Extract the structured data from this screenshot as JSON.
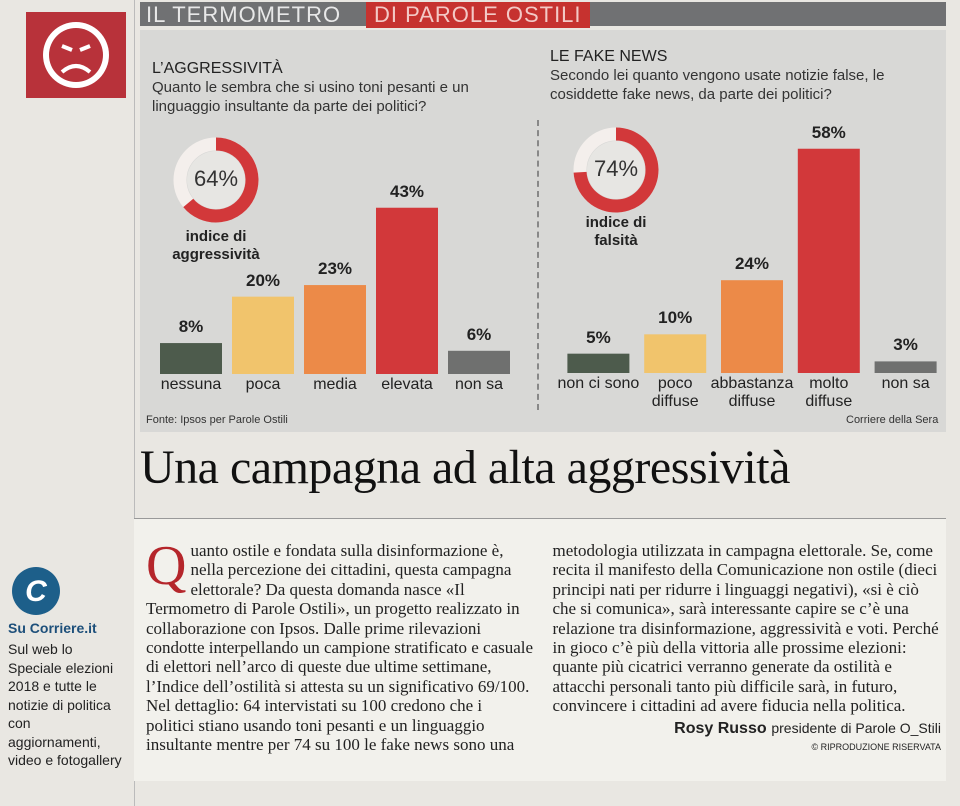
{
  "header": {
    "title_left": "IL TERMOMETRO",
    "title_right": "DI PAROLE OSTILI"
  },
  "chart_data": [
    {
      "type": "bar",
      "title": "L’AGGRESSIVITÀ",
      "subtitle": "Quanto le sembra che si usino toni pesanti e un linguaggio insultante da parte dei politici?",
      "categories": [
        "nessuna",
        "poca",
        "media",
        "elevata",
        "non sa"
      ],
      "values": [
        8,
        20,
        23,
        43,
        6
      ],
      "value_labels": [
        "8%",
        "20%",
        "23%",
        "43%",
        "6%"
      ],
      "colors": [
        "#4d5b4c",
        "#f1c46c",
        "#ec8a48",
        "#d2383a",
        "#6f706f"
      ],
      "ylim": [
        0,
        60
      ],
      "index": {
        "value": 64,
        "label": "64%",
        "caption": "indice di aggressività",
        "color": "#d2383a"
      }
    },
    {
      "type": "bar",
      "title": "LE FAKE NEWS",
      "subtitle": "Secondo lei quanto vengono usate notizie false, le cosiddette fake news, da parte dei politici?",
      "categories": [
        "non ci sono",
        "poco diffuse",
        "abbastanza diffuse",
        "molto diffuse",
        "non sa"
      ],
      "values": [
        5,
        10,
        24,
        58,
        3
      ],
      "value_labels": [
        "5%",
        "10%",
        "24%",
        "58%",
        "3%"
      ],
      "colors": [
        "#4d5b4c",
        "#f1c46c",
        "#ec8a48",
        "#d2383a",
        "#6f706f"
      ],
      "ylim": [
        0,
        60
      ],
      "index": {
        "value": 74,
        "label": "74%",
        "caption": "indice di falsità",
        "color": "#d2383a"
      }
    }
  ],
  "source": "Fonte: Ipsos per Parole Ostili",
  "credit": "Corriere della Sera",
  "headline": "Una campagna ad alta aggressività",
  "article": {
    "dropcap": "Q",
    "body": "uanto ostile e fondata sulla disinformazione è, nella percezione dei cittadini, questa campagna elettorale? Da questa domanda nasce «Il Termometro di Parole Ostili», un progetto realizzato in collaborazione con Ipsos. Dalle prime rilevazioni condotte interpellando un campione stratificato e casuale di elettori nell’arco di queste due ultime settimane, l’Indice dell’ostilità si attesta su un significativo 69/100. Nel dettaglio: 64 intervistati su 100 credono che i politici stiano usando toni pesanti e un linguaggio insultante mentre per 74 su 100 le fake news sono una metodologia utilizzata in campagna elettorale. Se, come recita il manifesto della Comunicazione non ostile (dieci principi nati per ridurre i linguaggi negativi), «si è ciò che si comunica», sarà interessante capire se c’è una relazione tra disinformazione, aggressività e voti. Perché in gioco c’è più della vittoria alle prossime elezioni: quante più cicatrici verranno generate da ostilità e attacchi personali tanto più difficile sarà, in futuro, convincere i cittadini ad avere fiducia nella politica.",
    "author": "Rosy Russo",
    "author_role": "presidente di Parole O_Stili",
    "rights": "© RIPRODUZIONE RISERVATA"
  },
  "sidebar": {
    "logo": "C",
    "title": "Su Corriere.it",
    "text": "Sul web lo Speciale elezioni 2018 e tutte le notizie di politica con aggiornamenti, video e fotogallery"
  }
}
